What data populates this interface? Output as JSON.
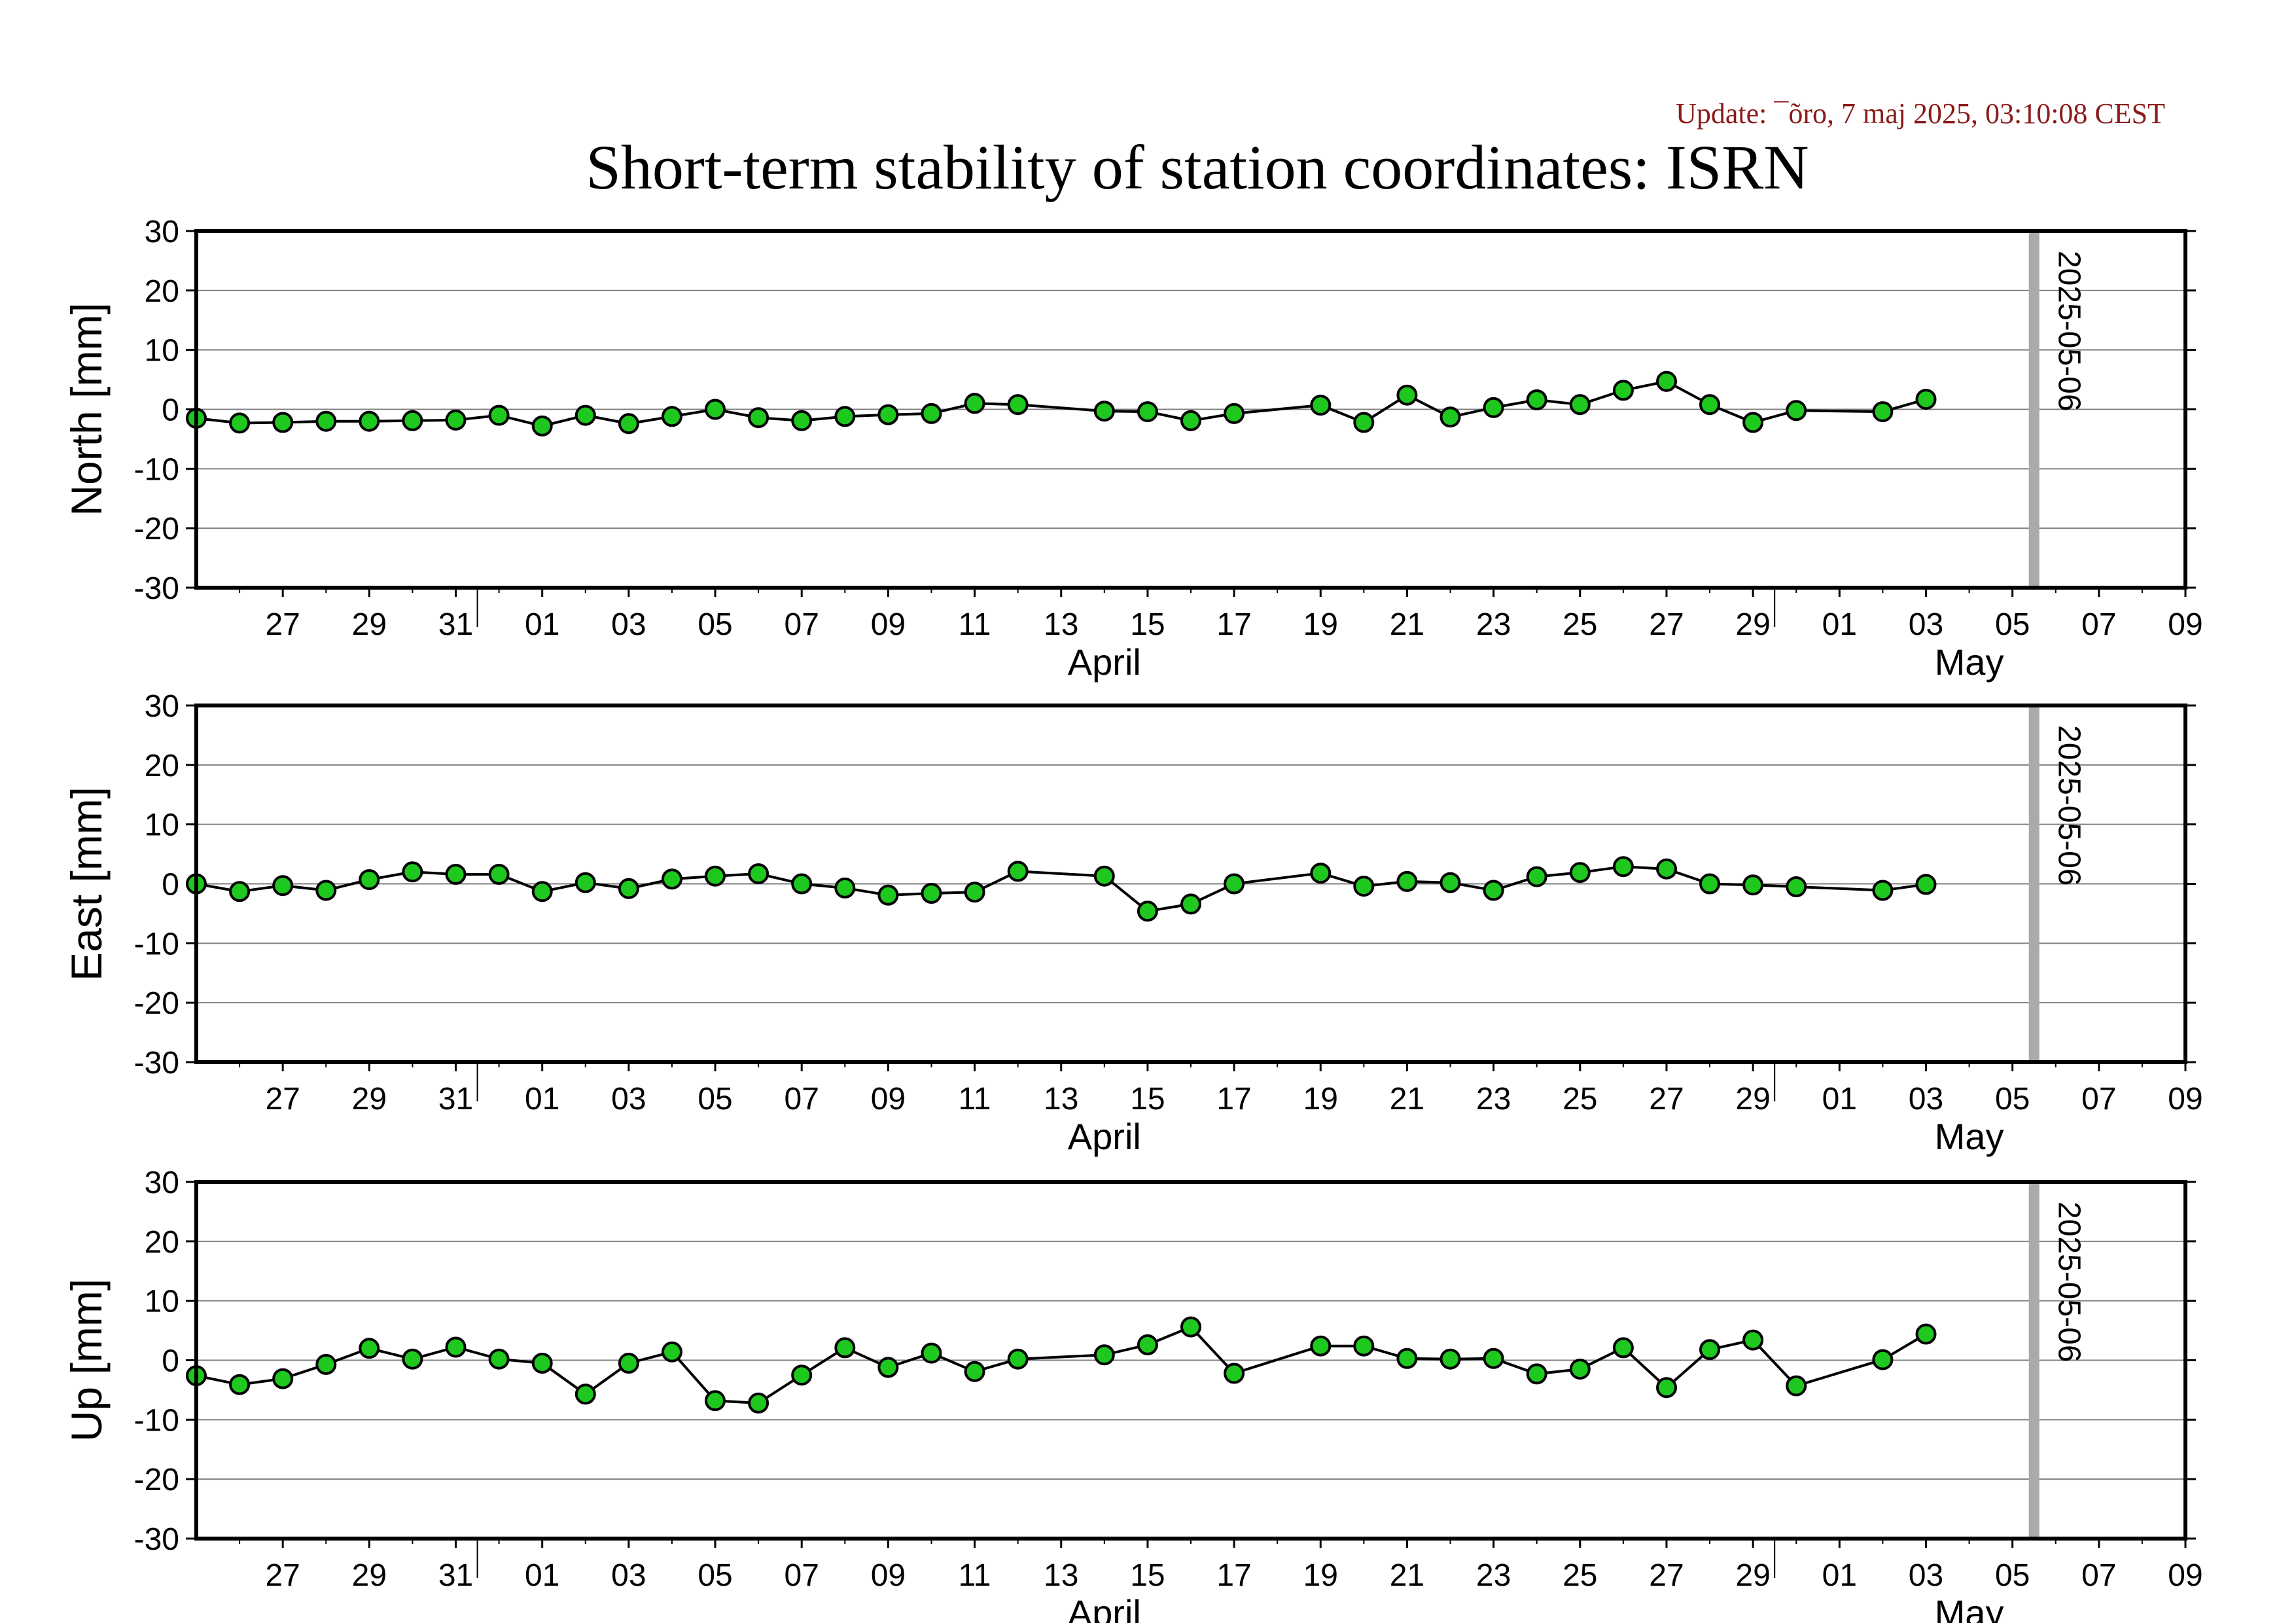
{
  "header": {
    "update": "Update: ¯õro, 7 maj 2025, 03:10:08 CEST",
    "title": "Short-term stability of station coordinates: ISRN"
  },
  "colors": {
    "marker": "#1ec81e",
    "line": "#000000",
    "grid": "#808080",
    "marker_line": "#aaaaaa",
    "update_text": "#8b1a1a"
  },
  "chart_data": [
    {
      "type": "line",
      "ylabel": "North [mm]",
      "ylim": [
        -30,
        30
      ],
      "yticks": [
        -30,
        -20,
        -10,
        0,
        10,
        20,
        30
      ],
      "xlim": [
        "2025-03-25",
        "2025-05-10"
      ],
      "xtick_labels": [
        "27",
        "29",
        "31",
        "01",
        "03",
        "05",
        "07",
        "09",
        "11",
        "13",
        "15",
        "17",
        "19",
        "21",
        "23",
        "25",
        "27",
        "29",
        "01",
        "03",
        "05",
        "07",
        "09"
      ],
      "month_labels": [
        "April",
        "May"
      ],
      "marker_date": "2025-05-06",
      "grid": true,
      "x": [
        "2025-03-25",
        "2025-03-26",
        "2025-03-27",
        "2025-03-28",
        "2025-03-29",
        "2025-03-30",
        "2025-03-31",
        "2025-04-01",
        "2025-04-02",
        "2025-04-03",
        "2025-04-04",
        "2025-04-05",
        "2025-04-06",
        "2025-04-07",
        "2025-04-08",
        "2025-04-09",
        "2025-04-10",
        "2025-04-11",
        "2025-04-12",
        "2025-04-13",
        "2025-04-15",
        "2025-04-16",
        "2025-04-17",
        "2025-04-18",
        "2025-04-20",
        "2025-04-21",
        "2025-04-22",
        "2025-04-23",
        "2025-04-24",
        "2025-04-25",
        "2025-04-26",
        "2025-04-27",
        "2025-04-28",
        "2025-04-29",
        "2025-04-30",
        "2025-05-01",
        "2025-05-03",
        "2025-05-04"
      ],
      "values": [
        -1.5,
        -2.3,
        -2.2,
        -2.0,
        -2.0,
        -1.9,
        -1.8,
        -1.0,
        -2.8,
        -1.0,
        -2.4,
        -1.2,
        0.0,
        -1.4,
        -1.9,
        -1.2,
        -0.9,
        -0.7,
        1.0,
        0.8,
        -0.3,
        -0.4,
        -1.9,
        -0.7,
        0.7,
        -2.2,
        2.4,
        -1.3,
        0.3,
        1.6,
        0.8,
        3.2,
        4.7,
        0.8,
        -2.2,
        -0.2,
        -0.4,
        1.7
      ]
    },
    {
      "type": "line",
      "ylabel": "East [mm]",
      "ylim": [
        -30,
        30
      ],
      "yticks": [
        -30,
        -20,
        -10,
        0,
        10,
        20,
        30
      ],
      "xlim": [
        "2025-03-25",
        "2025-05-10"
      ],
      "xtick_labels": [
        "27",
        "29",
        "31",
        "01",
        "03",
        "05",
        "07",
        "09",
        "11",
        "13",
        "15",
        "17",
        "19",
        "21",
        "23",
        "25",
        "27",
        "29",
        "01",
        "03",
        "05",
        "07",
        "09"
      ],
      "month_labels": [
        "April",
        "May"
      ],
      "marker_date": "2025-05-06",
      "grid": true,
      "x": [
        "2025-03-25",
        "2025-03-26",
        "2025-03-27",
        "2025-03-28",
        "2025-03-29",
        "2025-03-30",
        "2025-03-31",
        "2025-04-01",
        "2025-04-02",
        "2025-04-03",
        "2025-04-04",
        "2025-04-05",
        "2025-04-06",
        "2025-04-07",
        "2025-04-08",
        "2025-04-09",
        "2025-04-10",
        "2025-04-11",
        "2025-04-12",
        "2025-04-13",
        "2025-04-15",
        "2025-04-16",
        "2025-04-17",
        "2025-04-18",
        "2025-04-20",
        "2025-04-21",
        "2025-04-22",
        "2025-04-23",
        "2025-04-24",
        "2025-04-25",
        "2025-04-26",
        "2025-04-27",
        "2025-04-28",
        "2025-04-29",
        "2025-04-30",
        "2025-05-01",
        "2025-05-03",
        "2025-05-04"
      ],
      "values": [
        0.0,
        -1.3,
        -0.3,
        -1.1,
        0.7,
        2.0,
        1.6,
        1.6,
        -1.3,
        0.2,
        -0.8,
        0.8,
        1.3,
        1.7,
        0.0,
        -0.7,
        -1.9,
        -1.6,
        -1.4,
        2.1,
        1.3,
        -4.6,
        -3.4,
        0.0,
        1.8,
        -0.4,
        0.4,
        0.2,
        -1.1,
        1.2,
        1.9,
        2.9,
        2.5,
        0.0,
        -0.2,
        -0.5,
        -1.1,
        -0.1
      ]
    },
    {
      "type": "line",
      "ylabel": "Up [mm]",
      "ylim": [
        -30,
        30
      ],
      "yticks": [
        -30,
        -20,
        -10,
        0,
        10,
        20,
        30
      ],
      "xlim": [
        "2025-03-25",
        "2025-05-10"
      ],
      "xtick_labels": [
        "27",
        "29",
        "31",
        "01",
        "03",
        "05",
        "07",
        "09",
        "11",
        "13",
        "15",
        "17",
        "19",
        "21",
        "23",
        "25",
        "27",
        "29",
        "01",
        "03",
        "05",
        "07",
        "09"
      ],
      "month_labels": [
        "April",
        "May"
      ],
      "marker_date": "2025-05-06",
      "grid": true,
      "x": [
        "2025-03-25",
        "2025-03-26",
        "2025-03-27",
        "2025-03-28",
        "2025-03-29",
        "2025-03-30",
        "2025-03-31",
        "2025-04-01",
        "2025-04-02",
        "2025-04-03",
        "2025-04-04",
        "2025-04-05",
        "2025-04-06",
        "2025-04-07",
        "2025-04-08",
        "2025-04-09",
        "2025-04-10",
        "2025-04-11",
        "2025-04-12",
        "2025-04-13",
        "2025-04-15",
        "2025-04-16",
        "2025-04-17",
        "2025-04-18",
        "2025-04-20",
        "2025-04-21",
        "2025-04-22",
        "2025-04-23",
        "2025-04-24",
        "2025-04-25",
        "2025-04-26",
        "2025-04-27",
        "2025-04-28",
        "2025-04-29",
        "2025-04-30",
        "2025-05-01",
        "2025-05-03",
        "2025-05-04"
      ],
      "values": [
        -2.6,
        -4.1,
        -3.1,
        -0.7,
        2.0,
        0.2,
        2.2,
        0.2,
        -0.5,
        -5.7,
        -0.5,
        1.4,
        -6.8,
        -7.2,
        -2.5,
        2.1,
        -1.2,
        1.2,
        -1.9,
        0.2,
        0.9,
        2.6,
        5.6,
        -2.2,
        2.4,
        2.4,
        0.3,
        0.2,
        0.3,
        -2.3,
        -1.5,
        2.1,
        -4.6,
        1.8,
        3.4,
        -4.3,
        0.1,
        4.4
      ]
    }
  ]
}
